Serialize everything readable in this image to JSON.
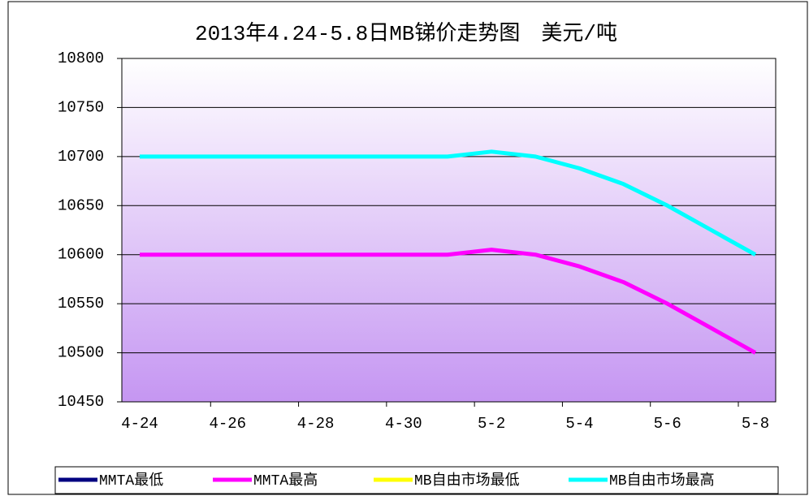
{
  "chart_data": {
    "type": "line",
    "title": "2013年4.24-5.8日MB锑价走势图　美元/吨",
    "categories": [
      "4-24",
      null,
      "4-26",
      null,
      "4-28",
      null,
      "4-30",
      null,
      "5-2",
      null,
      "5-4",
      null,
      "5-6",
      null,
      "5-8"
    ],
    "series": [
      {
        "name": "MMTA最低",
        "color": "#000080",
        "values": [
          null,
          null,
          null,
          null,
          null,
          null,
          null,
          null,
          null,
          null,
          null,
          null,
          null,
          null,
          null
        ]
      },
      {
        "name": "MMTA最高",
        "color": "#ff00ff",
        "values": [
          10600,
          10600,
          10600,
          10600,
          10600,
          10600,
          10600,
          10600,
          10605,
          10600,
          10588,
          10572,
          10550,
          10525,
          10500
        ]
      },
      {
        "name": "MB自由市场最低",
        "color": "#ffff00",
        "values": [
          null,
          null,
          null,
          null,
          null,
          null,
          null,
          null,
          null,
          null,
          null,
          null,
          null,
          null,
          null
        ]
      },
      {
        "name": "MB自由市场最高",
        "color": "#00ffff",
        "values": [
          10700,
          10700,
          10700,
          10700,
          10700,
          10700,
          10700,
          10700,
          10705,
          10700,
          10688,
          10672,
          10650,
          10625,
          10600
        ]
      }
    ],
    "ylim": [
      10450,
      10800
    ],
    "yticks": [
      10450,
      10500,
      10550,
      10600,
      10650,
      10700,
      10750,
      10800
    ],
    "grid": true,
    "legend": "bottom"
  }
}
